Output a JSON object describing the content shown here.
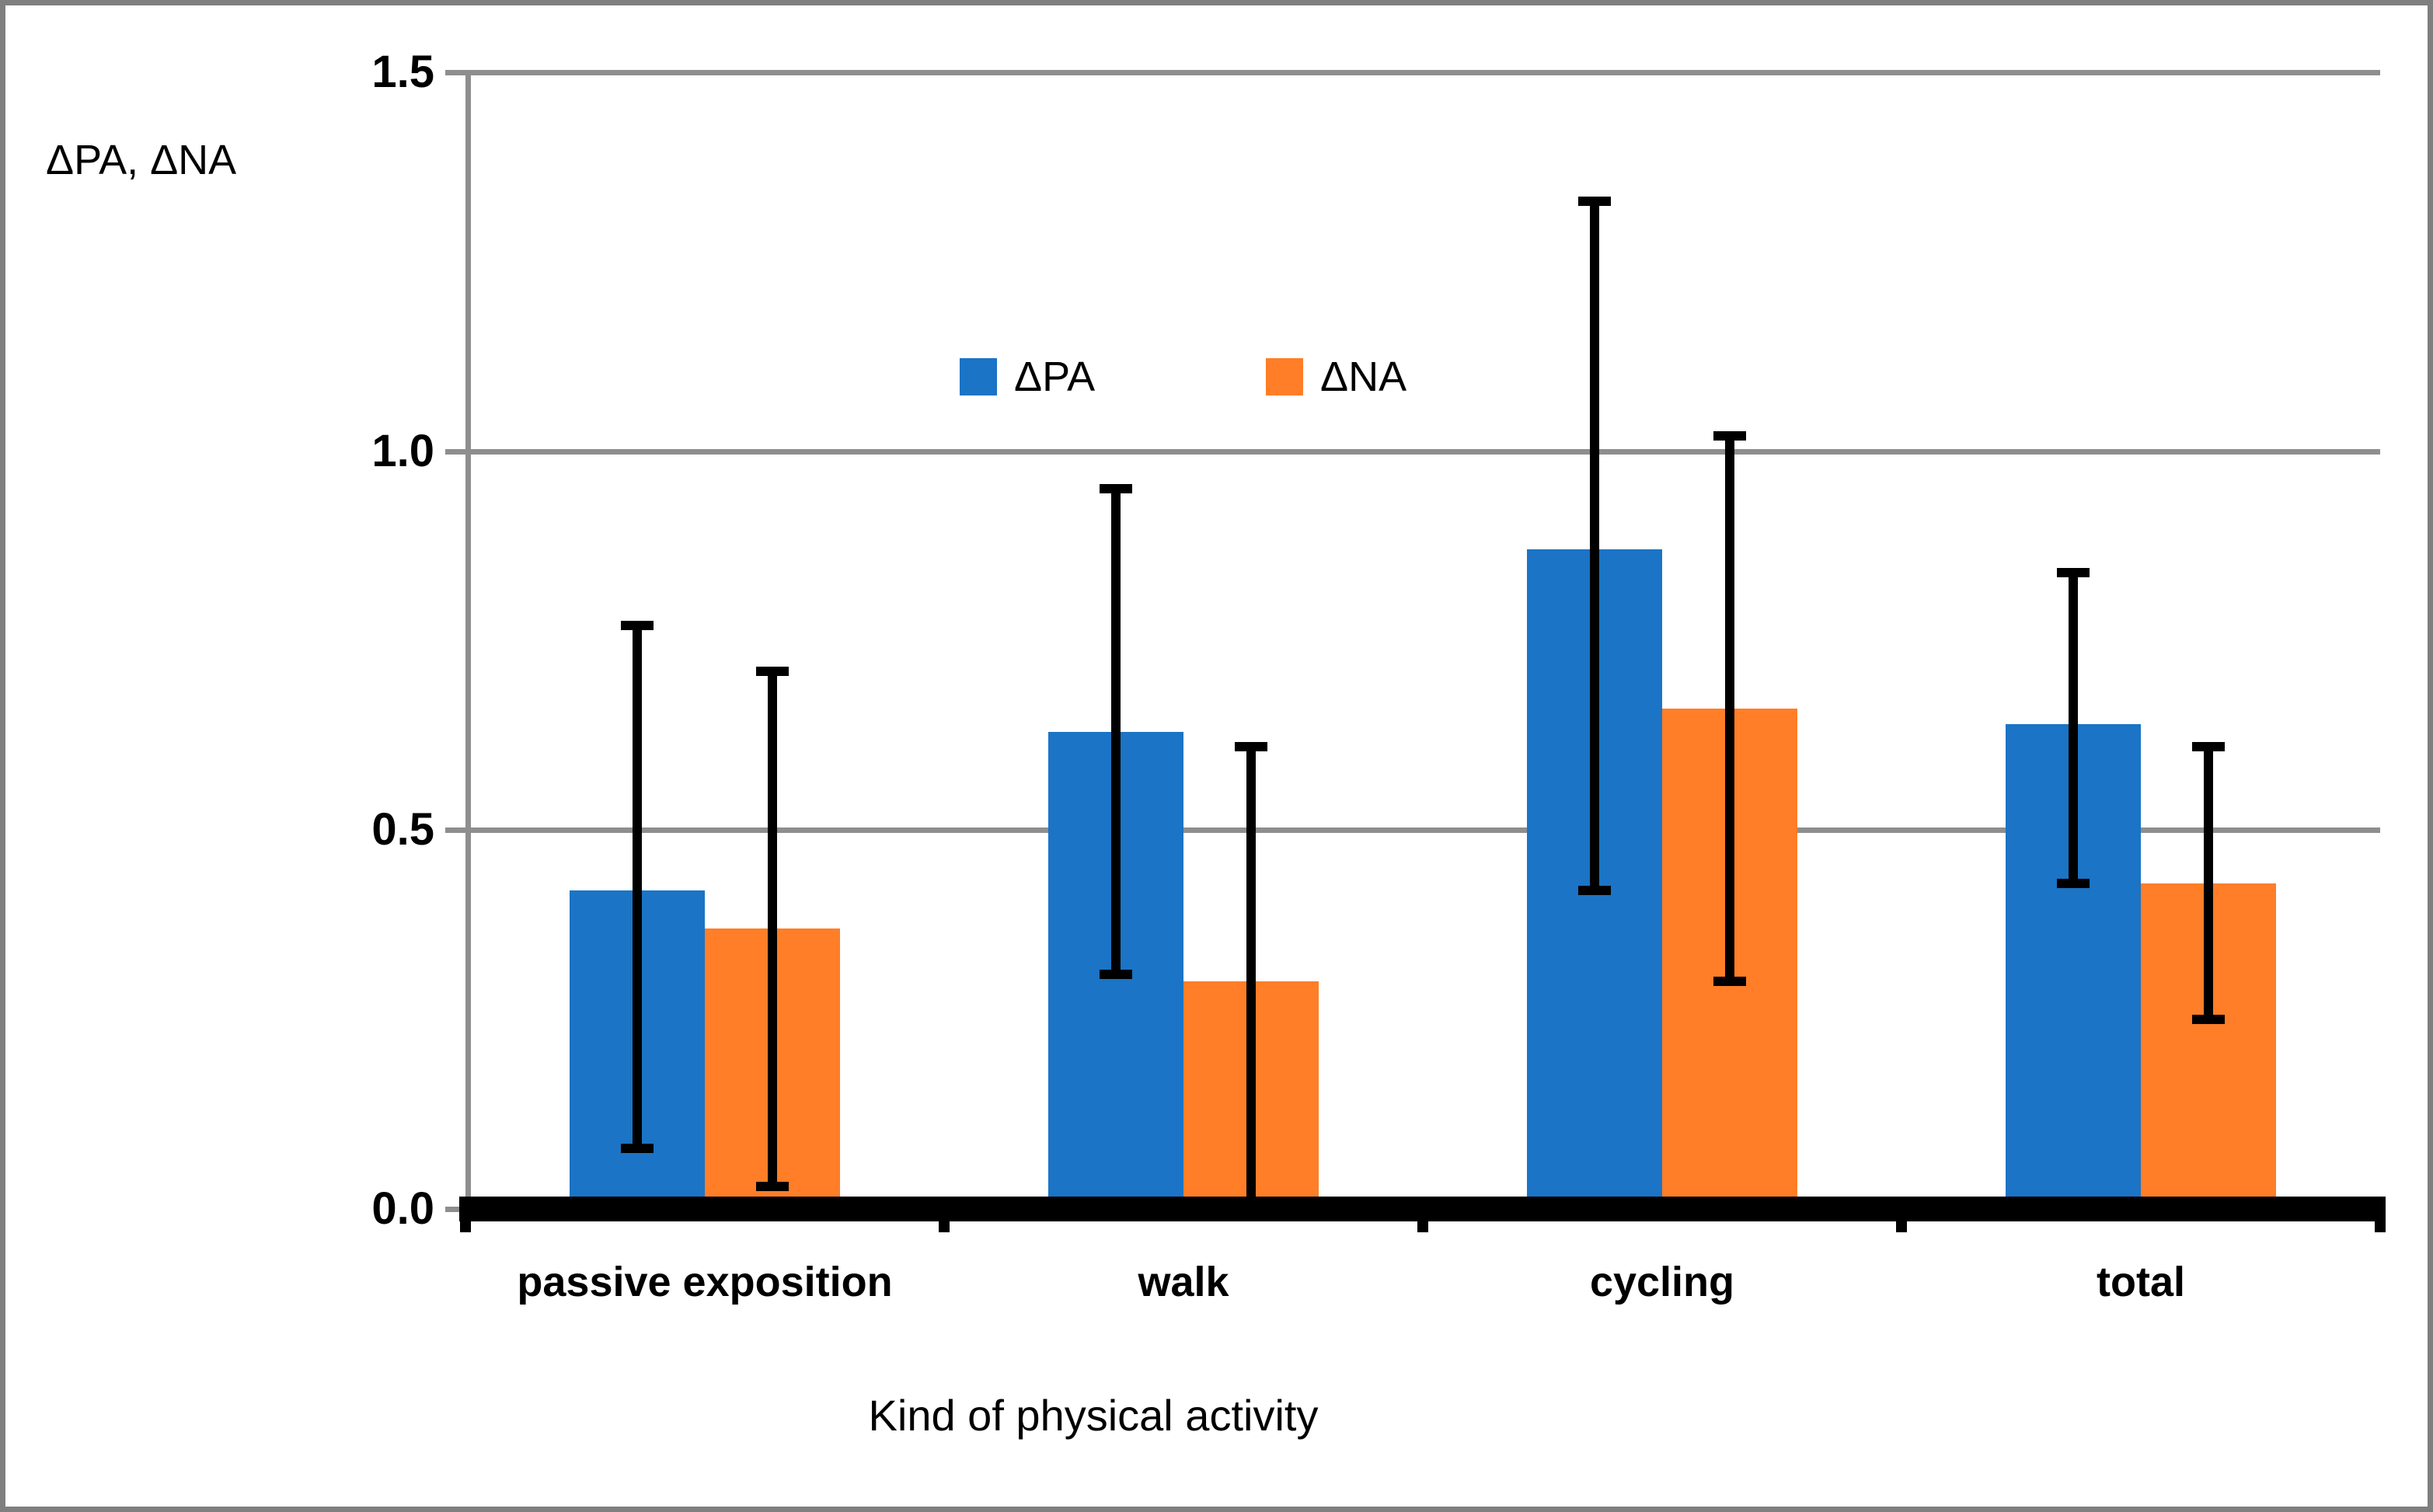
{
  "chart_data": {
    "type": "bar",
    "title": "",
    "categories": [
      "passive exposition",
      "walk",
      "cycling",
      "total"
    ],
    "series": [
      {
        "name": "ΔPA",
        "color": "#1B74C5",
        "values": [
          0.42,
          0.63,
          0.87,
          0.64
        ],
        "error_low": [
          0.08,
          0.31,
          0.42,
          0.43
        ],
        "error_high": [
          0.77,
          0.95,
          1.33,
          0.84
        ]
      },
      {
        "name": "ΔNA",
        "color": "#FF7E27",
        "values": [
          0.37,
          0.3,
          0.66,
          0.43
        ],
        "error_low": [
          0.03,
          0.0,
          0.3,
          0.25
        ],
        "error_high": [
          0.71,
          0.61,
          1.02,
          0.61
        ]
      }
    ],
    "xlabel": "Kind of physical activity",
    "ylabel": "ΔPA, ΔNA",
    "ylim": [
      0,
      1.5
    ],
    "yticks": [
      0,
      0.5,
      1,
      1.5
    ],
    "ytick_labels": [
      "0.0",
      "0.5",
      "1.0",
      "1.5"
    ],
    "grid": true,
    "error_bars": true,
    "legend": {
      "entries": [
        "ΔPA",
        "ΔNA"
      ],
      "position": "upper-center"
    }
  },
  "styles": {
    "grid_color": "#8E8E8E",
    "axis_color": "#8E8E8E",
    "zero_axis_color": "#000000",
    "error_bar_color": "#000000",
    "border_color": "#7F7F7F",
    "background": "#FFFFFF",
    "text_color": "#000000"
  }
}
